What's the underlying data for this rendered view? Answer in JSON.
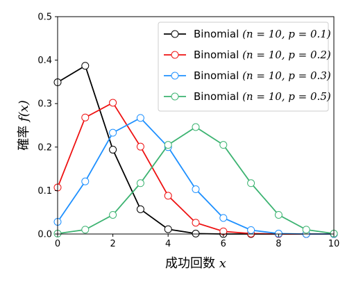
{
  "chart_data": {
    "type": "line",
    "x": [
      0,
      1,
      2,
      3,
      4,
      5,
      6,
      7,
      8,
      9,
      10
    ],
    "xlim": [
      0,
      10
    ],
    "ylim": [
      0,
      0.5
    ],
    "xticks": [
      "0",
      "2",
      "4",
      "6",
      "8",
      "10"
    ],
    "yticks": [
      "0.0",
      "0.1",
      "0.2",
      "0.3",
      "0.4",
      "0.5"
    ],
    "xlabel": {
      "text": "成功回数",
      "math": "x"
    },
    "ylabel": {
      "text": "確率",
      "math": "f(x)"
    },
    "legend_position": "top-right",
    "grid": false,
    "series": [
      {
        "name": "Binomial",
        "params": "(n = 10, p = 0.1)",
        "color": "#000000",
        "values": [
          0.349,
          0.387,
          0.194,
          0.057,
          0.011,
          0.001,
          0.0,
          0.0,
          0.0,
          0.0,
          0.0
        ]
      },
      {
        "name": "Binomial",
        "params": "(n = 10, p = 0.2)",
        "color": "#ee1111",
        "values": [
          0.107,
          0.268,
          0.302,
          0.201,
          0.088,
          0.026,
          0.006,
          0.001,
          0.0,
          0.0,
          0.0
        ]
      },
      {
        "name": "Binomial",
        "params": "(n = 10, p = 0.3)",
        "color": "#1e90ff",
        "values": [
          0.028,
          0.121,
          0.233,
          0.267,
          0.2,
          0.103,
          0.037,
          0.009,
          0.001,
          0.0,
          0.0
        ]
      },
      {
        "name": "Binomial",
        "params": "(n = 10, p = 0.5)",
        "color": "#3cb371",
        "values": [
          0.001,
          0.01,
          0.044,
          0.117,
          0.205,
          0.246,
          0.205,
          0.117,
          0.044,
          0.01,
          0.001
        ]
      }
    ]
  }
}
